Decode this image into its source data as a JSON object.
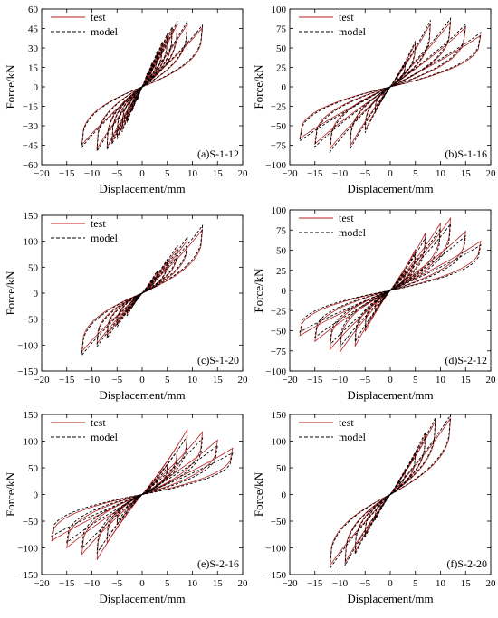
{
  "figure": {
    "xlabel": "Displacement/mm",
    "ylabel": "Force/kN",
    "legend": [
      "test",
      "model"
    ],
    "colors": {
      "test": "#b22222",
      "model": "#000000"
    }
  },
  "chart_data": [
    {
      "type": "line",
      "label": "(a)S-1-12",
      "xlabel": "Displacement/mm",
      "ylabel": "Force/kN",
      "xlim": [
        -20,
        20
      ],
      "ylim": [
        -60,
        60
      ],
      "xticks": [
        -20,
        -15,
        -10,
        -5,
        0,
        5,
        10,
        15,
        20
      ],
      "yticks": [
        -60,
        -45,
        -30,
        -15,
        0,
        15,
        30,
        45,
        60
      ],
      "legend_position": "top-left",
      "grid": false,
      "amplitudes": [
        1,
        2,
        3,
        4,
        5,
        6,
        7,
        9,
        12
      ],
      "peak_pos": [
        10,
        18,
        26,
        33,
        39,
        44,
        48,
        48,
        45
      ],
      "peak_neg": [
        -10,
        -18,
        -26,
        -33,
        -38,
        -42,
        -46,
        -47,
        -44
      ],
      "series": [
        {
          "name": "test",
          "pinch": 0.08,
          "k": 1.0
        },
        {
          "name": "model",
          "pinch": 0.08,
          "k": 1.04
        }
      ]
    },
    {
      "type": "line",
      "label": "(b)S-1-16",
      "xlabel": "Displacement/mm",
      "ylabel": "Force/kN",
      "xlim": [
        -20,
        20
      ],
      "ylim": [
        -100,
        100
      ],
      "xticks": [
        -20,
        -15,
        -10,
        -5,
        0,
        5,
        10,
        15,
        20
      ],
      "yticks": [
        -100,
        -75,
        -50,
        -25,
        0,
        25,
        50,
        75,
        100
      ],
      "legend_position": "top-left",
      "grid": false,
      "amplitudes": [
        1.5,
        3,
        5,
        8,
        12,
        15,
        18
      ],
      "peak_pos": [
        15,
        30,
        55,
        80,
        82,
        75,
        65
      ],
      "peak_neg": [
        -15,
        -30,
        -55,
        -75,
        -78,
        -72,
        -65
      ],
      "series": [
        {
          "name": "test",
          "pinch": 0.1,
          "k": 1.0
        },
        {
          "name": "model",
          "pinch": 0.1,
          "k": 1.05
        }
      ]
    },
    {
      "type": "line",
      "label": "(c)S-1-20",
      "xlabel": "Displacement/mm",
      "ylabel": "Force/kN",
      "xlim": [
        -20,
        20
      ],
      "ylim": [
        -150,
        150
      ],
      "xticks": [
        -20,
        -15,
        -10,
        -5,
        0,
        5,
        10,
        15,
        20
      ],
      "yticks": [
        -150,
        -100,
        -50,
        0,
        50,
        100,
        150
      ],
      "legend_position": "top-left",
      "grid": false,
      "amplitudes": [
        1,
        2,
        3,
        5,
        7,
        9,
        12
      ],
      "peak_pos": [
        10,
        25,
        40,
        60,
        85,
        100,
        120
      ],
      "peak_neg": [
        -10,
        -25,
        -40,
        -60,
        -80,
        -95,
        -110
      ],
      "series": [
        {
          "name": "test",
          "pinch": 0.12,
          "k": 1.0
        },
        {
          "name": "model",
          "pinch": 0.12,
          "k": 1.06
        }
      ]
    },
    {
      "type": "line",
      "label": "(d)S-2-12",
      "xlabel": "Displacement/mm",
      "ylabel": "Force/kN",
      "xlim": [
        -20,
        20
      ],
      "ylim": [
        -100,
        100
      ],
      "xticks": [
        -20,
        -15,
        -10,
        -5,
        0,
        5,
        10,
        15,
        20
      ],
      "yticks": [
        -100,
        -75,
        -50,
        -25,
        0,
        25,
        50,
        75,
        100
      ],
      "legend_position": "top-left",
      "grid": false,
      "amplitudes": [
        1.5,
        3,
        5,
        7,
        10,
        12,
        15,
        18
      ],
      "peak_pos": [
        12,
        25,
        50,
        70,
        82,
        88,
        72,
        60
      ],
      "peak_neg": [
        -12,
        -25,
        -50,
        -68,
        -75,
        -72,
        -62,
        -55
      ],
      "series": [
        {
          "name": "test",
          "pinch": 0.1,
          "k": 1.0
        },
        {
          "name": "model",
          "pinch": 0.1,
          "k": 0.92
        }
      ]
    },
    {
      "type": "line",
      "label": "(e)S-2-16",
      "xlabel": "Displacement/mm",
      "ylabel": "Force/kN",
      "xlim": [
        -20,
        20
      ],
      "ylim": [
        -150,
        150
      ],
      "xticks": [
        -20,
        -15,
        -10,
        -5,
        0,
        5,
        10,
        15,
        20
      ],
      "yticks": [
        -150,
        -100,
        -50,
        0,
        50,
        100,
        150
      ],
      "legend_position": "top-left",
      "grid": false,
      "amplitudes": [
        1.5,
        3,
        5,
        7,
        9,
        12,
        15,
        18
      ],
      "peak_pos": [
        12,
        28,
        55,
        90,
        120,
        115,
        100,
        85
      ],
      "peak_neg": [
        -12,
        -28,
        -55,
        -90,
        -120,
        -110,
        -98,
        -85
      ],
      "series": [
        {
          "name": "test",
          "pinch": 0.1,
          "k": 1.0
        },
        {
          "name": "model",
          "pinch": 0.1,
          "k": 0.9
        }
      ]
    },
    {
      "type": "line",
      "label": "(f)S-2-20",
      "xlabel": "Displacement/mm",
      "ylabel": "Force/kN",
      "xlim": [
        -20,
        20
      ],
      "ylim": [
        -150,
        150
      ],
      "xticks": [
        -20,
        -15,
        -10,
        -5,
        0,
        5,
        10,
        15,
        20
      ],
      "yticks": [
        -150,
        -100,
        -50,
        0,
        50,
        100,
        150
      ],
      "legend_position": "top-left",
      "grid": false,
      "amplitudes": [
        1,
        2,
        3,
        5,
        7,
        9,
        12
      ],
      "peak_pos": [
        10,
        25,
        45,
        75,
        110,
        135,
        140
      ],
      "peak_neg": [
        -10,
        -25,
        -45,
        -75,
        -105,
        -125,
        -130
      ],
      "series": [
        {
          "name": "test",
          "pinch": 0.12,
          "k": 1.0
        },
        {
          "name": "model",
          "pinch": 0.12,
          "k": 1.04
        }
      ]
    }
  ]
}
